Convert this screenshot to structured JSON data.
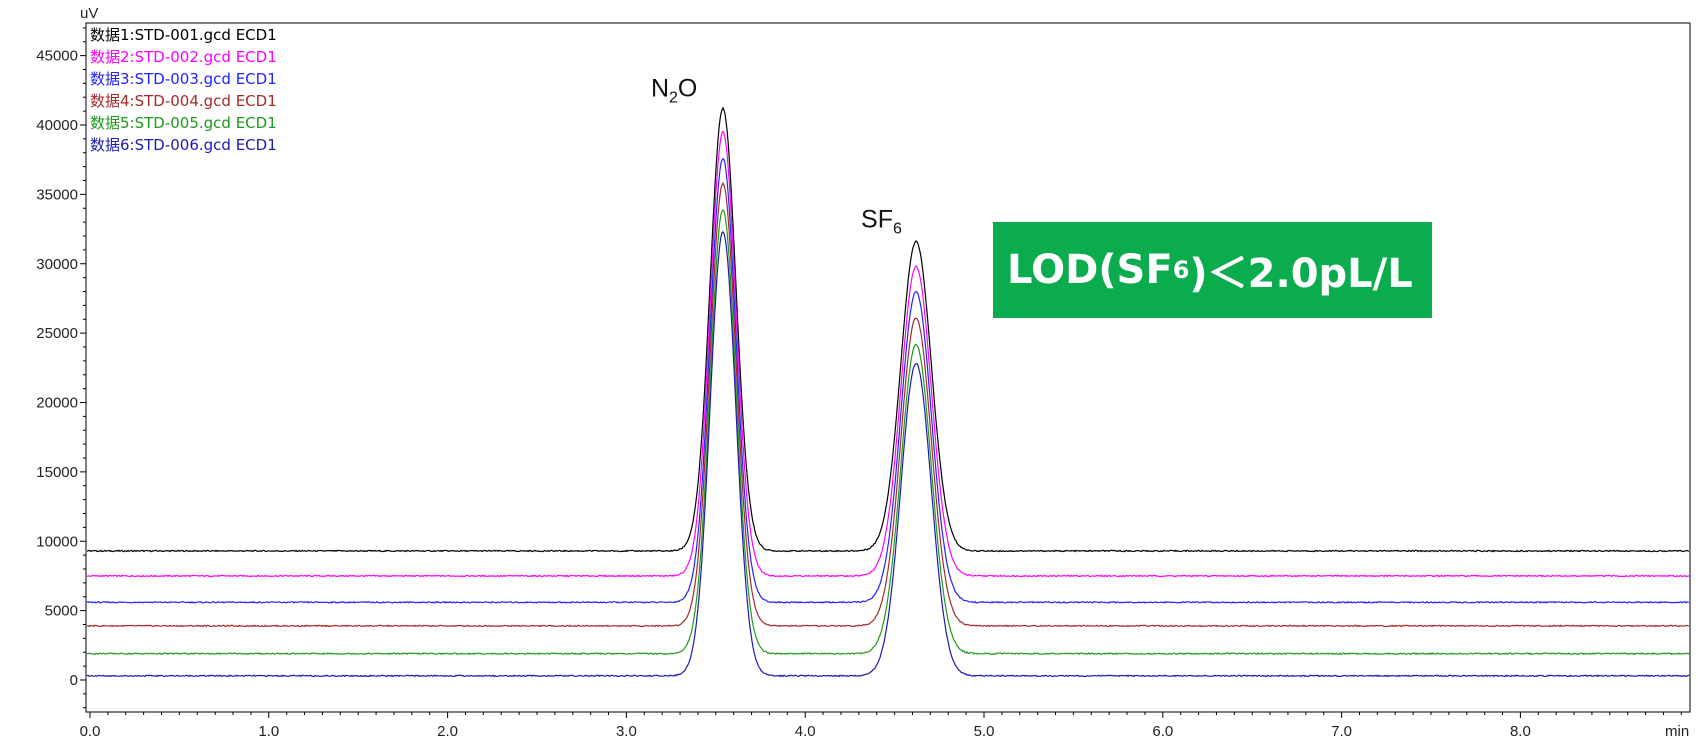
{
  "chart_data": {
    "type": "line",
    "xlabel": "min",
    "ylabel": "uV",
    "xlim": [
      0.0,
      9.0
    ],
    "ylim": [
      -2500,
      47500
    ],
    "x_ticks": [
      "0.0",
      "1.0",
      "2.0",
      "3.0",
      "4.0",
      "5.0",
      "6.0",
      "7.0",
      "8.0"
    ],
    "y_ticks": [
      "0",
      "5000",
      "10000",
      "15000",
      "20000",
      "25000",
      "30000",
      "35000",
      "40000",
      "45000"
    ],
    "series": [
      {
        "name": "数据1:STD-001.gcd ECD1",
        "color": "#000000",
        "baseline": 9300,
        "peaks": [
          {
            "x": 3.54,
            "apex": 41200
          },
          {
            "x": 4.62,
            "apex": 31600
          }
        ]
      },
      {
        "name": "数据2:STD-002.gcd ECD1",
        "color": "#ff00ff",
        "baseline": 7500,
        "peaks": [
          {
            "x": 3.54,
            "apex": 39500
          },
          {
            "x": 4.62,
            "apex": 29800
          }
        ]
      },
      {
        "name": "数据3:STD-003.gcd ECD1",
        "color": "#2323ff",
        "baseline": 5600,
        "peaks": [
          {
            "x": 3.54,
            "apex": 37600
          },
          {
            "x": 4.62,
            "apex": 28000
          }
        ]
      },
      {
        "name": "数据4:STD-004.gcd ECD1",
        "color": "#a52a2a",
        "baseline": 3900,
        "peaks": [
          {
            "x": 3.54,
            "apex": 35800
          },
          {
            "x": 4.62,
            "apex": 26100
          }
        ]
      },
      {
        "name": "数据5:STD-005.gcd ECD1",
        "color": "#1e9a1e",
        "baseline": 1900,
        "peaks": [
          {
            "x": 3.54,
            "apex": 33900
          },
          {
            "x": 4.62,
            "apex": 24200
          }
        ]
      },
      {
        "name": "数据6:STD-006.gcd ECD1",
        "color": "#1b1bb0",
        "baseline": 300,
        "peaks": [
          {
            "x": 3.54,
            "apex": 32300
          },
          {
            "x": 4.62,
            "apex": 22800
          }
        ]
      }
    ],
    "annotations": [
      {
        "main": "N",
        "sub": "2",
        "tail": "O",
        "x": 3.54,
        "y": 41200
      },
      {
        "main": "SF",
        "sub": "6",
        "tail": "",
        "x": 4.62,
        "y": 31600
      }
    ]
  },
  "lod_box": {
    "pre": "LOD(SF",
    "sub": "6",
    "post": ")＜2.0pL/L"
  }
}
